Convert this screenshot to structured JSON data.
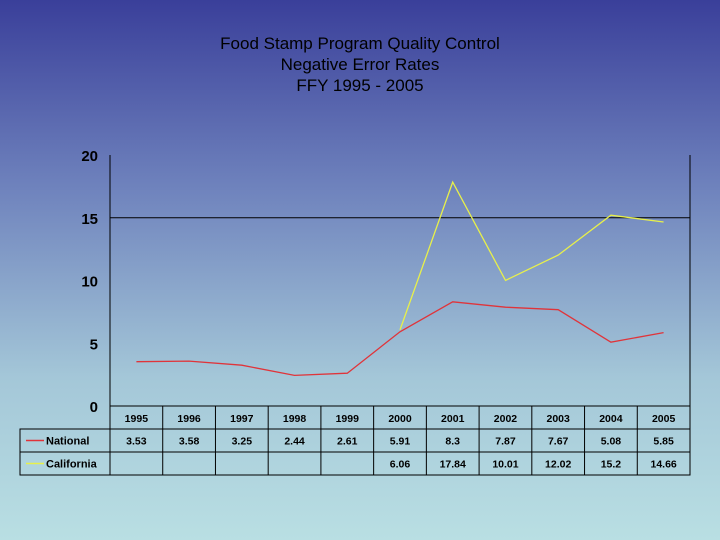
{
  "chart_data": {
    "type": "line",
    "title": "Food Stamp Program Quality Control",
    "subtitle": "Negative Error Rates",
    "subtitle2": "FFY 1995 - 2005",
    "categories": [
      "1995",
      "1996",
      "1997",
      "1998",
      "1999",
      "2000",
      "2001",
      "2002",
      "2003",
      "2004",
      "2005"
    ],
    "ylim": [
      0,
      20
    ],
    "yticks": [
      "0",
      "5",
      "10",
      "15",
      "20"
    ],
    "ytick_values": [
      0,
      5,
      10,
      15,
      20
    ],
    "reference_line": 15,
    "legend": "data-table",
    "series": [
      {
        "name": "National",
        "color": "#e0343a",
        "values": [
          3.53,
          3.58,
          3.25,
          2.44,
          2.61,
          5.91,
          8.3,
          7.87,
          7.67,
          5.08,
          5.85
        ],
        "labels": [
          "3.53",
          "3.58",
          "3.25",
          "2.44",
          "2.61",
          "5.91",
          "8.3",
          "7.87",
          "7.67",
          "5.08",
          "5.85"
        ]
      },
      {
        "name": "California",
        "color": "#e8f04a",
        "values": [
          null,
          null,
          null,
          null,
          null,
          6.06,
          17.84,
          10.01,
          12.02,
          15.2,
          14.66
        ],
        "labels": [
          "",
          "",
          "",
          "",
          "",
          "6.06",
          "17.84",
          "10.01",
          "12.02",
          "15.2",
          "14.66"
        ]
      }
    ]
  }
}
